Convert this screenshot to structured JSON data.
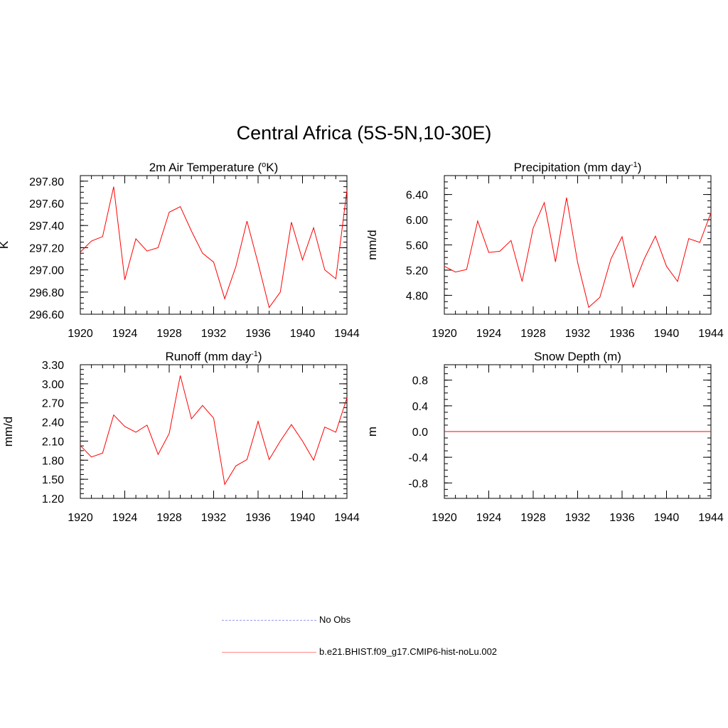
{
  "title": "Central Africa (5S-5N,10-30E)",
  "chart_data": [
    {
      "type": "line",
      "title": "2m Air Temperature (",
      "title_sup": "o",
      "title_after": "K)",
      "ylabel": "K",
      "xlim": [
        1920,
        1944
      ],
      "ylim": [
        296.6,
        297.85
      ],
      "yticks": [
        "296.60",
        "296.80",
        "297.00",
        "297.20",
        "297.40",
        "297.60",
        "297.80"
      ],
      "xticks": [
        "1920",
        "1924",
        "1928",
        "1932",
        "1936",
        "1940",
        "1944"
      ],
      "series": [
        {
          "color": "#ff0000",
          "x": [
            1920,
            1921,
            1922,
            1923,
            1924,
            1925,
            1926,
            1927,
            1928,
            1929,
            1930,
            1931,
            1932,
            1933,
            1934,
            1935,
            1936,
            1937,
            1938,
            1939,
            1940,
            1941,
            1942,
            1943,
            1944
          ],
          "values": [
            297.16,
            297.26,
            297.3,
            297.75,
            296.91,
            297.28,
            297.17,
            297.2,
            297.52,
            297.57,
            297.35,
            297.15,
            297.07,
            296.74,
            297.03,
            297.44,
            297.06,
            296.66,
            296.8,
            297.43,
            297.09,
            297.38,
            297.0,
            296.92,
            297.72
          ]
        }
      ]
    },
    {
      "type": "line",
      "title": "Precipitation (mm day",
      "title_sup": "-1",
      "title_after": ")",
      "ylabel": "mm/d",
      "xlim": [
        1920,
        1944
      ],
      "ylim": [
        4.5,
        6.7
      ],
      "yticks": [
        "4.80",
        "5.20",
        "5.60",
        "6.00",
        "6.40"
      ],
      "xticks": [
        "1920",
        "1924",
        "1928",
        "1932",
        "1936",
        "1940",
        "1944"
      ],
      "series": [
        {
          "color": "#ff0000",
          "x": [
            1920,
            1921,
            1922,
            1923,
            1924,
            1925,
            1926,
            1927,
            1928,
            1929,
            1930,
            1931,
            1932,
            1933,
            1934,
            1935,
            1936,
            1937,
            1938,
            1939,
            1940,
            1941,
            1942,
            1943,
            1944
          ],
          "values": [
            5.26,
            5.17,
            5.21,
            5.98,
            5.48,
            5.5,
            5.67,
            5.02,
            5.87,
            6.27,
            5.33,
            6.35,
            5.32,
            4.61,
            4.77,
            5.38,
            5.73,
            4.93,
            5.38,
            5.74,
            5.26,
            5.02,
            5.7,
            5.64,
            6.11
          ]
        }
      ]
    },
    {
      "type": "line",
      "title": "Runoff (mm day",
      "title_sup": "-1",
      "title_after": ")",
      "ylabel": "mm/d",
      "xlim": [
        1920,
        1944
      ],
      "ylim": [
        1.2,
        3.3
      ],
      "yticks": [
        "1.20",
        "1.50",
        "1.80",
        "2.10",
        "2.40",
        "2.70",
        "3.00",
        "3.30"
      ],
      "xticks": [
        "1920",
        "1924",
        "1928",
        "1932",
        "1936",
        "1940",
        "1944"
      ],
      "series": [
        {
          "color": "#ff0000",
          "x": [
            1920,
            1921,
            1922,
            1923,
            1924,
            1925,
            1926,
            1927,
            1928,
            1929,
            1930,
            1931,
            1932,
            1933,
            1934,
            1935,
            1936,
            1937,
            1938,
            1939,
            1940,
            1941,
            1942,
            1943,
            1944
          ],
          "values": [
            2.03,
            1.85,
            1.91,
            2.51,
            2.33,
            2.24,
            2.35,
            1.89,
            2.22,
            3.13,
            2.45,
            2.66,
            2.46,
            1.42,
            1.71,
            1.81,
            2.41,
            1.81,
            2.1,
            2.36,
            2.1,
            1.8,
            2.32,
            2.24,
            2.78
          ]
        }
      ]
    },
    {
      "type": "line",
      "title": "Snow Depth (m)",
      "title_sup": "",
      "title_after": "",
      "ylabel": "m",
      "xlim": [
        1920,
        1944
      ],
      "ylim": [
        -1.04,
        1.04
      ],
      "yticks": [
        "-0.8",
        "-0.4",
        "0.0",
        "0.4",
        "0.8"
      ],
      "xticks": [
        "1920",
        "1924",
        "1928",
        "1932",
        "1936",
        "1940",
        "1944"
      ],
      "series": [
        {
          "color": "#ff0000",
          "x": [
            1920,
            1921,
            1922,
            1923,
            1924,
            1925,
            1926,
            1927,
            1928,
            1929,
            1930,
            1931,
            1932,
            1933,
            1934,
            1935,
            1936,
            1937,
            1938,
            1939,
            1940,
            1941,
            1942,
            1943,
            1944
          ],
          "values": [
            0,
            0,
            0,
            0,
            0,
            0,
            0,
            0,
            0,
            0,
            0,
            0,
            0,
            0,
            0,
            0,
            0,
            0,
            0,
            0,
            0,
            0,
            0,
            0,
            0
          ]
        }
      ]
    }
  ],
  "legend": {
    "obs_label": "No Obs",
    "obs_color": "#9999ee",
    "model_label": "b.e21.BHIST.f09_g17.CMIP6-hist-noLu.002",
    "model_color": "#ff8888"
  }
}
